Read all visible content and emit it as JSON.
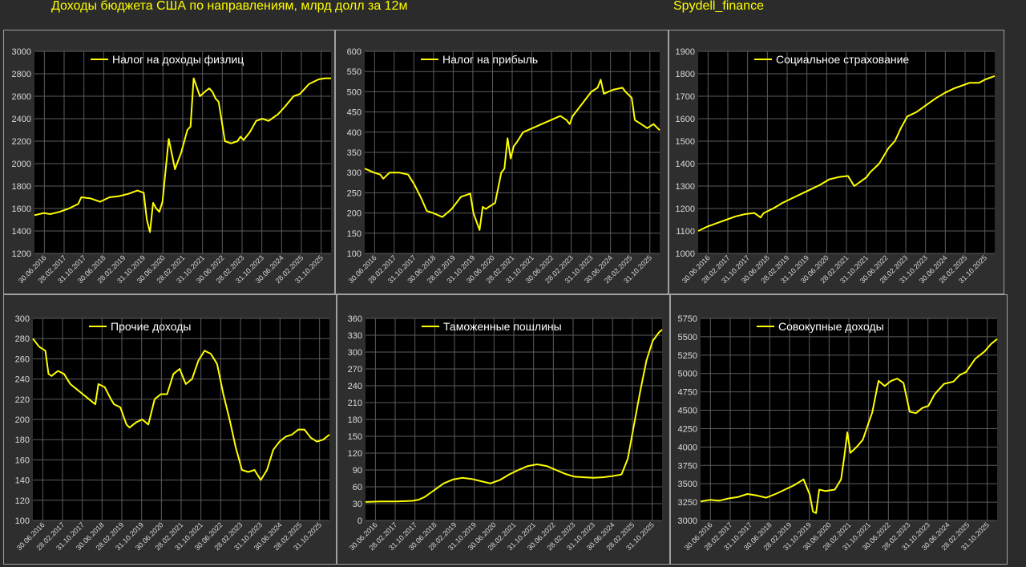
{
  "header": {
    "title": "Доходы бюджета США по направлениям, млрд долл за 12м",
    "brand": "Spydell_finance"
  },
  "colors": {
    "line": "#ffff00",
    "plot_bg": "#000000",
    "page_bg": "#2b2b2b",
    "grid": "#5c5c5c",
    "text": "#d9d9d9"
  },
  "x_labels": [
    "30.06.2016",
    "28.02.2017",
    "31.10.2017",
    "30.06.2018",
    "28.02.2019",
    "31.10.2019",
    "30.06.2020",
    "28.02.2021",
    "31.10.2021",
    "30.06.2022",
    "28.02.2023",
    "31.10.2023",
    "30.06.2024",
    "28.02.2025",
    "31.10.2025"
  ],
  "chart_data": [
    {
      "type": "line",
      "title": "Налог на доходы физлиц",
      "legend": "top-center",
      "ylim": [
        1200,
        3000
      ],
      "yticks": [
        1200,
        1400,
        1600,
        1800,
        2000,
        2200,
        2400,
        2600,
        2800,
        3000
      ],
      "x": [
        2016.5,
        2016.8,
        2017.0,
        2017.3,
        2017.6,
        2017.9,
        2018.0,
        2018.3,
        2018.6,
        2018.9,
        2019.2,
        2019.5,
        2019.8,
        2020.0,
        2020.1,
        2020.2,
        2020.3,
        2020.4,
        2020.5,
        2020.6,
        2020.8,
        2021.0,
        2021.2,
        2021.4,
        2021.5,
        2021.6,
        2021.8,
        2022.0,
        2022.1,
        2022.2,
        2022.3,
        2022.4,
        2022.6,
        2022.8,
        2023.0,
        2023.1,
        2023.2,
        2023.4,
        2023.6,
        2023.8,
        2024.0,
        2024.3,
        2024.5,
        2024.8,
        2025.0,
        2025.3,
        2025.6,
        2025.8,
        2025.9,
        2026.0
      ],
      "y": [
        1540,
        1560,
        1550,
        1570,
        1600,
        1640,
        1700,
        1690,
        1660,
        1700,
        1710,
        1730,
        1760,
        1740,
        1500,
        1390,
        1650,
        1600,
        1570,
        1660,
        2220,
        1950,
        2100,
        2300,
        2330,
        2760,
        2600,
        2650,
        2670,
        2640,
        2580,
        2550,
        2200,
        2180,
        2200,
        2240,
        2210,
        2280,
        2380,
        2400,
        2380,
        2440,
        2500,
        2600,
        2620,
        2710,
        2750,
        2760,
        2760,
        2760
      ]
    },
    {
      "type": "line",
      "title": "Налог на прибыль",
      "legend": "top-center",
      "ylim": [
        100,
        600
      ],
      "yticks": [
        100,
        150,
        200,
        250,
        300,
        350,
        400,
        450,
        500,
        550,
        600
      ],
      "x": [
        2016.5,
        2016.8,
        2017.0,
        2017.1,
        2017.3,
        2017.6,
        2017.9,
        2018.1,
        2018.3,
        2018.5,
        2018.7,
        2019.0,
        2019.3,
        2019.6,
        2019.9,
        2020.0,
        2020.2,
        2020.3,
        2020.4,
        2020.5,
        2020.7,
        2020.9,
        2021.0,
        2021.1,
        2021.2,
        2021.3,
        2021.4,
        2021.6,
        2021.9,
        2022.2,
        2022.5,
        2022.8,
        2023.0,
        2023.1,
        2023.2,
        2023.4,
        2023.6,
        2023.8,
        2024.0,
        2024.1,
        2024.2,
        2024.5,
        2024.8,
        2024.9,
        2025.1,
        2025.2,
        2025.4,
        2025.6,
        2025.8,
        2026.0
      ],
      "y": [
        310,
        300,
        295,
        285,
        300,
        300,
        295,
        270,
        240,
        205,
        200,
        190,
        210,
        240,
        248,
        200,
        158,
        215,
        210,
        215,
        225,
        300,
        310,
        385,
        335,
        365,
        375,
        400,
        410,
        420,
        430,
        440,
        430,
        420,
        440,
        460,
        480,
        500,
        510,
        530,
        495,
        505,
        510,
        500,
        485,
        430,
        420,
        410,
        420,
        405
      ]
    },
    {
      "type": "line",
      "title": "Социальное страхование",
      "legend": "top-center",
      "ylim": [
        1000,
        1900
      ],
      "yticks": [
        1000,
        1100,
        1200,
        1300,
        1400,
        1500,
        1600,
        1700,
        1800,
        1900
      ],
      "x": [
        2016.5,
        2016.8,
        2017.1,
        2017.4,
        2017.7,
        2018.0,
        2018.3,
        2018.5,
        2018.6,
        2018.9,
        2019.2,
        2019.5,
        2019.8,
        2020.1,
        2020.4,
        2020.7,
        2021.0,
        2021.3,
        2021.5,
        2021.7,
        2021.9,
        2022.0,
        2022.3,
        2022.6,
        2022.8,
        2023.0,
        2023.2,
        2023.5,
        2023.8,
        2024.1,
        2024.4,
        2024.7,
        2025.0,
        2025.2,
        2025.5,
        2025.7,
        2026.0
      ],
      "y": [
        1100,
        1120,
        1135,
        1150,
        1165,
        1175,
        1180,
        1160,
        1180,
        1200,
        1225,
        1245,
        1265,
        1285,
        1305,
        1330,
        1340,
        1345,
        1300,
        1320,
        1340,
        1360,
        1400,
        1470,
        1500,
        1560,
        1610,
        1630,
        1660,
        1690,
        1715,
        1735,
        1750,
        1760,
        1760,
        1775,
        1790
      ]
    },
    {
      "type": "line",
      "title": "Прочие доходы",
      "legend": "top-center",
      "ylim": [
        100,
        300
      ],
      "yticks": [
        100,
        120,
        140,
        160,
        180,
        200,
        220,
        240,
        260,
        280,
        300
      ],
      "x": [
        2016.5,
        2016.7,
        2016.9,
        2017.0,
        2017.1,
        2017.3,
        2017.5,
        2017.7,
        2017.9,
        2018.1,
        2018.3,
        2018.5,
        2018.6,
        2018.8,
        2019.0,
        2019.1,
        2019.3,
        2019.5,
        2019.6,
        2019.8,
        2020.0,
        2020.2,
        2020.4,
        2020.6,
        2020.8,
        2021.0,
        2021.2,
        2021.4,
        2021.6,
        2021.8,
        2022.0,
        2022.2,
        2022.4,
        2022.6,
        2022.8,
        2023.0,
        2023.2,
        2023.4,
        2023.6,
        2023.8,
        2024.0,
        2024.2,
        2024.4,
        2024.6,
        2024.8,
        2025.0,
        2025.2,
        2025.4,
        2025.6,
        2025.8,
        2026.0
      ],
      "y": [
        280,
        272,
        268,
        245,
        243,
        248,
        245,
        235,
        230,
        225,
        220,
        215,
        235,
        232,
        220,
        215,
        212,
        195,
        192,
        197,
        200,
        195,
        220,
        225,
        225,
        245,
        250,
        235,
        240,
        258,
        268,
        265,
        255,
        225,
        200,
        172,
        150,
        148,
        150,
        140,
        150,
        170,
        178,
        183,
        185,
        190,
        190,
        182,
        178,
        180,
        185
      ]
    },
    {
      "type": "line",
      "title": "Таможенные пошлины",
      "legend": "top-center",
      "ylim": [
        0,
        360
      ],
      "yticks": [
        0,
        30,
        60,
        90,
        120,
        150,
        180,
        210,
        240,
        270,
        300,
        330,
        360
      ],
      "x": [
        2016.5,
        2017.0,
        2017.5,
        2018.0,
        2018.2,
        2018.4,
        2018.6,
        2018.8,
        2019.0,
        2019.3,
        2019.6,
        2019.9,
        2020.2,
        2020.5,
        2020.8,
        2021.1,
        2021.4,
        2021.7,
        2022.0,
        2022.3,
        2022.6,
        2022.9,
        2023.2,
        2023.5,
        2023.8,
        2024.1,
        2024.4,
        2024.7,
        2024.9,
        2025.1,
        2025.3,
        2025.5,
        2025.7,
        2025.9,
        2026.0
      ],
      "y": [
        33,
        34,
        34,
        35,
        37,
        42,
        50,
        58,
        66,
        73,
        76,
        74,
        70,
        66,
        72,
        82,
        90,
        97,
        100,
        97,
        90,
        83,
        78,
        77,
        76,
        77,
        79,
        82,
        110,
        170,
        230,
        285,
        320,
        335,
        340
      ]
    },
    {
      "type": "line",
      "title": "Совокупные доходы",
      "legend": "top-center",
      "ylim": [
        3000,
        5750
      ],
      "yticks": [
        3000,
        3250,
        3500,
        3750,
        4000,
        4250,
        4500,
        4750,
        5000,
        5250,
        5500,
        5750
      ],
      "x": [
        2016.5,
        2016.8,
        2017.1,
        2017.4,
        2017.7,
        2018.0,
        2018.3,
        2018.6,
        2018.9,
        2019.2,
        2019.5,
        2019.8,
        2020.0,
        2020.1,
        2020.2,
        2020.3,
        2020.5,
        2020.8,
        2021.0,
        2021.1,
        2021.2,
        2021.3,
        2021.5,
        2021.7,
        2021.9,
        2022.0,
        2022.2,
        2022.4,
        2022.6,
        2022.8,
        2023.0,
        2023.2,
        2023.4,
        2023.6,
        2023.8,
        2024.0,
        2024.3,
        2024.6,
        2024.8,
        2025.0,
        2025.3,
        2025.6,
        2025.8,
        2026.0
      ],
      "y": [
        3260,
        3280,
        3270,
        3300,
        3320,
        3360,
        3340,
        3310,
        3360,
        3420,
        3480,
        3560,
        3350,
        3120,
        3100,
        3420,
        3400,
        3420,
        3560,
        3860,
        4200,
        3920,
        4000,
        4100,
        4350,
        4470,
        4900,
        4830,
        4900,
        4930,
        4870,
        4480,
        4460,
        4530,
        4560,
        4720,
        4860,
        4890,
        4980,
        5020,
        5200,
        5300,
        5400,
        5470
      ]
    }
  ]
}
